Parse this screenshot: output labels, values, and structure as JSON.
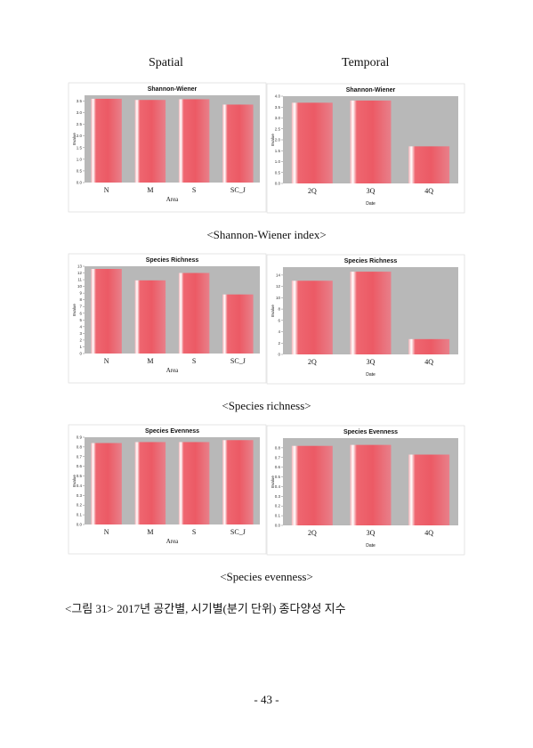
{
  "headings": {
    "spatial": "Spatial",
    "temporal": "Temporal"
  },
  "captions": {
    "shannon": "<Shannon-Wiener index>",
    "richness": "<Species richness>",
    "evenness": "<Species evenness>"
  },
  "figure_caption": "<그림 31> 2017년 공간별, 시기별(분기 단위) 종다양성 지수",
  "page_number": "- 43 -",
  "colors": {
    "bar": "#ee5f6a",
    "plot_bg": "#b8b8b8",
    "frame": "#ffffff"
  },
  "chart_data": [
    {
      "type": "bar",
      "title": "Shannon-Wiener",
      "xlabel": "Area",
      "ylabel": "Evalue",
      "categories": [
        "N",
        "M",
        "S",
        "SC_J"
      ],
      "values": [
        3.6,
        3.55,
        3.58,
        3.35
      ],
      "ylim": [
        0,
        3.75
      ],
      "yticks": [
        "0.0",
        "0.5",
        "1.0",
        "1.5",
        "2.0",
        "2.5",
        "3.0",
        "3.5"
      ]
    },
    {
      "type": "bar",
      "title": "Shannon-Wiener",
      "xlabel": "Date",
      "ylabel": "Evalue",
      "categories": [
        "2Q",
        "3Q",
        "4Q"
      ],
      "values": [
        3.7,
        3.8,
        1.7
      ],
      "ylim": [
        0,
        4.0
      ],
      "yticks": [
        "0.0",
        "0.5",
        "1.0",
        "1.5",
        "2.0",
        "2.5",
        "3.0",
        "3.5",
        "4.0"
      ]
    },
    {
      "type": "bar",
      "title": "Species Richness",
      "xlabel": "Area",
      "ylabel": "Evalue",
      "categories": [
        "N",
        "M",
        "S",
        "SC_J"
      ],
      "values": [
        12.6,
        10.9,
        12.0,
        8.8
      ],
      "ylim": [
        0,
        13
      ],
      "yticks": [
        "0",
        "1",
        "2",
        "3",
        "4",
        "5",
        "6",
        "7",
        "8",
        "9",
        "10",
        "11",
        "12",
        "13"
      ]
    },
    {
      "type": "bar",
      "title": "Species Richness",
      "xlabel": "Date",
      "ylabel": "Evalue",
      "categories": [
        "2Q",
        "3Q",
        "4Q"
      ],
      "values": [
        13.0,
        14.6,
        2.7
      ],
      "ylim": [
        0,
        15.4
      ],
      "yticks": [
        "0",
        "2",
        "4",
        "6",
        "8",
        "10",
        "12",
        "14"
      ]
    },
    {
      "type": "bar",
      "title": "Species Evenness",
      "xlabel": "Area",
      "ylabel": "Evalue",
      "categories": [
        "N",
        "M",
        "S",
        "SC_J"
      ],
      "values": [
        0.84,
        0.85,
        0.85,
        0.87
      ],
      "ylim": [
        0,
        0.9
      ],
      "yticks": [
        "0.0",
        "0.1",
        "0.2",
        "0.3",
        "0.4",
        "0.5",
        "0.6",
        "0.7",
        "0.8",
        "0.9"
      ]
    },
    {
      "type": "bar",
      "title": "Species Evenness",
      "xlabel": "Date",
      "ylabel": "Evalue",
      "categories": [
        "2Q",
        "3Q",
        "4Q"
      ],
      "values": [
        0.82,
        0.83,
        0.73
      ],
      "ylim": [
        0,
        0.9
      ],
      "yticks": [
        "0.0",
        "0.1",
        "0.2",
        "0.3",
        "0.4",
        "0.5",
        "0.6",
        "0.7",
        "0.8"
      ]
    }
  ]
}
